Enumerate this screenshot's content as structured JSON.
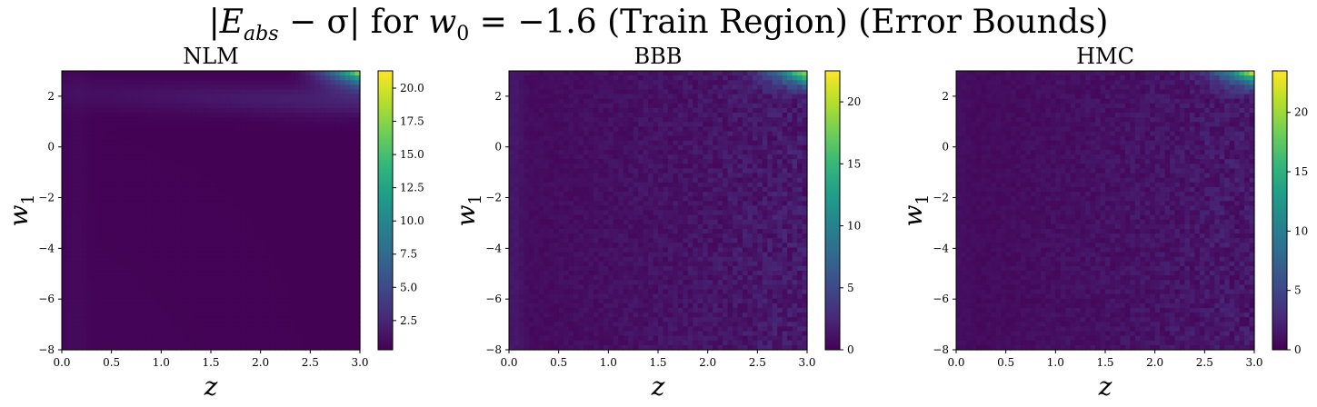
{
  "title": "|E_abs − σ| for w_0 = −1.6 (Train Region) (Error Bounds)",
  "title_parts": {
    "bar_open": "|",
    "e": "E",
    "e_sub": "abs",
    "minus_sigma": " − σ",
    "bar_close": "|",
    "for": " for ",
    "w": "w",
    "w_sub": "0",
    "equals": " = −1.6 (Train Region) (Error Bounds)"
  },
  "colors": {
    "viridis": [
      "#440154",
      "#482878",
      "#3e4989",
      "#31688e",
      "#26828e",
      "#1f9e89",
      "#35b779",
      "#6ece58",
      "#b5de2b",
      "#fde725"
    ]
  },
  "chart_data": [
    {
      "type": "heatmap",
      "title": "NLM",
      "xlabel": "z",
      "ylabel": "w_1",
      "xlim": [
        0.0,
        3.0
      ],
      "ylim": [
        -8,
        3
      ],
      "x_ticks": [
        "0.0",
        "0.5",
        "1.0",
        "1.5",
        "2.0",
        "2.5",
        "3.0"
      ],
      "y_ticks": [
        "2",
        "0",
        "−2",
        "−4",
        "−6",
        "−8"
      ],
      "colorbar": {
        "min": 0.3,
        "max": 21.3,
        "ticks": [
          "2.5",
          "5.0",
          "7.5",
          "10.0",
          "12.5",
          "15.0",
          "17.5",
          "20.0"
        ]
      },
      "pattern": "smooth",
      "summary": {
        "background": 0.5,
        "peak_corner": "top-right",
        "peak_value": 21.3,
        "band_at_w1": 2.0
      }
    },
    {
      "type": "heatmap",
      "title": "BBB",
      "xlabel": "z",
      "ylabel": "w_1",
      "xlim": [
        0.0,
        3.0
      ],
      "ylim": [
        -8,
        3
      ],
      "x_ticks": [
        "0.0",
        "0.5",
        "1.0",
        "1.5",
        "2.0",
        "2.5",
        "3.0"
      ],
      "y_ticks": [
        "2",
        "0",
        "−2",
        "−4",
        "−6",
        "−8"
      ],
      "colorbar": {
        "min": 0,
        "max": 22.5,
        "ticks": [
          "0",
          "5",
          "10",
          "15",
          "20"
        ]
      },
      "pattern": "noisy",
      "summary": {
        "background": 1.2,
        "peak_corner": "top-right",
        "peak_value": 22.5
      }
    },
    {
      "type": "heatmap",
      "title": "HMC",
      "xlabel": "z",
      "ylabel": "w_1",
      "xlim": [
        0.0,
        3.0
      ],
      "ylim": [
        -8,
        3
      ],
      "x_ticks": [
        "0.0",
        "0.5",
        "1.0",
        "1.5",
        "2.0",
        "2.5",
        "3.0"
      ],
      "y_ticks": [
        "2",
        "0",
        "−2",
        "−4",
        "−6",
        "−8"
      ],
      "colorbar": {
        "min": 0,
        "max": 23.5,
        "ticks": [
          "0",
          "5",
          "10",
          "15",
          "20"
        ]
      },
      "pattern": "noisy",
      "summary": {
        "background": 0.9,
        "peak_corner": "top-right",
        "peak_value": 23.5
      }
    }
  ]
}
